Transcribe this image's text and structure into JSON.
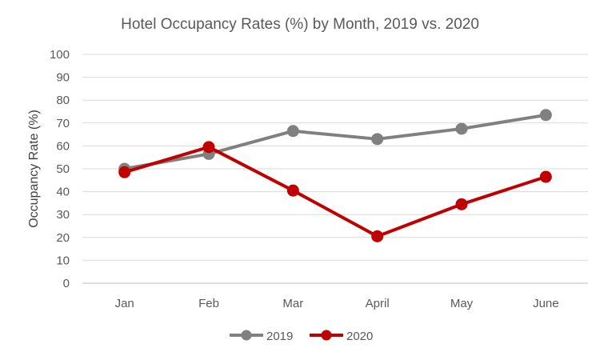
{
  "chart_data": {
    "type": "line",
    "title": "Hotel Occupancy Rates (%) by Month, 2019 vs. 2020",
    "xlabel": "",
    "ylabel": "Occupancy Rate (%)",
    "categories": [
      "Jan",
      "Feb",
      "Mar",
      "April",
      "May",
      "June"
    ],
    "ylim": [
      0,
      100
    ],
    "yticks": [
      0,
      10,
      20,
      30,
      40,
      50,
      60,
      70,
      80,
      90,
      100
    ],
    "grid": true,
    "legend": "bottom",
    "series": [
      {
        "name": "2019",
        "color": "#808080",
        "values": [
          50,
          56.5,
          66.5,
          63,
          67.5,
          73.5
        ]
      },
      {
        "name": "2020",
        "color": "#c00000",
        "values": [
          48.5,
          59.5,
          40.5,
          20.5,
          34.5,
          46.5
        ]
      }
    ]
  }
}
